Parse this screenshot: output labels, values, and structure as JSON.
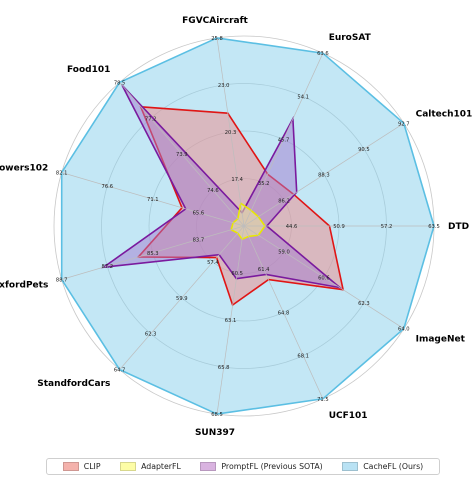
{
  "chart_data": {
    "type": "radar",
    "axes": [
      "DTD",
      "Caltech101",
      "EuroSAT",
      "FGVCAircraft",
      "Food101",
      "Flowers102",
      "OxfordPets",
      "StandfordCars",
      "SUN397",
      "UCF101",
      "ImageNet"
    ],
    "tick_labels": [
      [
        "50.9",
        "57.2",
        "63.5"
      ],
      [
        "88.3",
        "90.5",
        "92.7"
      ],
      [
        "45.7",
        "54.1",
        "63.6"
      ],
      [
        "20.3",
        "23.0",
        "25.8"
      ],
      [
        "73.9",
        "77.2",
        "78.5"
      ],
      [
        "71.1",
        "76.6",
        "82.1"
      ],
      [
        "85.3",
        "87.2",
        "88.7"
      ],
      [
        "59.9",
        "62.3",
        "64.7"
      ],
      [
        "63.1",
        "65.8",
        "68.5"
      ],
      [
        "64.8",
        "68.1",
        "71.5"
      ],
      [
        "60.6",
        "62.3",
        "64.0"
      ]
    ],
    "inner_labels": [
      {
        "axis": 0,
        "text": "44.6"
      },
      {
        "axis": 1,
        "text": "86.2"
      },
      {
        "axis": 2,
        "text": "35.2"
      },
      {
        "axis": 3,
        "text": "17.4"
      },
      {
        "axis": 4,
        "text": "74.6"
      },
      {
        "axis": 5,
        "text": "65.6"
      },
      {
        "axis": 6,
        "text": "83.7"
      },
      {
        "axis": 7,
        "text": "57.4"
      },
      {
        "axis": 8,
        "text": "60.5"
      },
      {
        "axis": 9,
        "text": "61.4"
      },
      {
        "axis": 10,
        "text": "59.0"
      }
    ],
    "series": [
      {
        "name": "CacheFL (Ours)",
        "fill": "#87cfeb",
        "stroke": "#5bbfe3",
        "values": [
          1,
          1,
          1,
          1,
          1,
          1,
          1,
          1,
          1,
          1,
          1
        ]
      },
      {
        "name": "CLIP",
        "fill": "#f08a8a",
        "stroke": "#e01515",
        "values": [
          0.45,
          0.31,
          0.3,
          0.6,
          0.83,
          0.34,
          0.58,
          0.22,
          0.42,
          0.31,
          0.62
        ]
      },
      {
        "name": "PromptFL (Previous SOTA)",
        "fill": "#a47bcf",
        "stroke": "#7a1a9e",
        "values": [
          0.12,
          0.33,
          0.62,
          0.07,
          0.98,
          0.32,
          0.77,
          0.2,
          0.28,
          0.28,
          0.6
        ]
      },
      {
        "name": "AdapterFL",
        "fill": "#f3f39a",
        "stroke": "#e8e800",
        "values": [
          0.11,
          0.09,
          0.09,
          0.12,
          0.05,
          0.06,
          0.07,
          0.05,
          0.07,
          0.06,
          0.09
        ]
      }
    ],
    "legend_order": [
      "CLIP",
      "AdapterFL",
      "PromptFL (Previous SOTA)",
      "CacheFL (Ours)"
    ],
    "legend_placement": "bottom",
    "grid": true
  }
}
